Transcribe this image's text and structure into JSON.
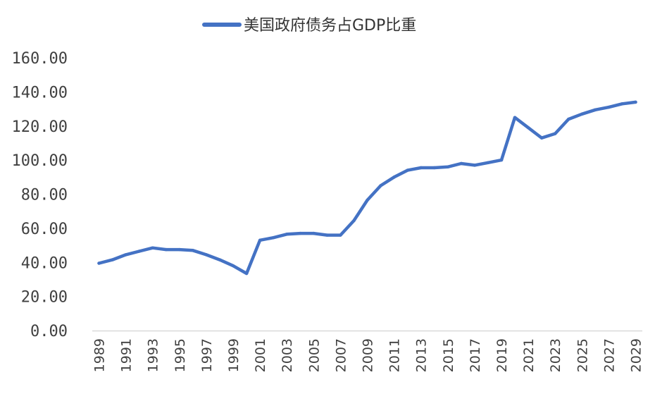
{
  "chart_data": {
    "type": "line",
    "title": "",
    "xlabel": "",
    "ylabel": "",
    "ylim": [
      0,
      160
    ],
    "yticks": [
      "0.00",
      "20.00",
      "40.00",
      "60.00",
      "80.00",
      "100.00",
      "120.00",
      "140.00",
      "160.00"
    ],
    "xtick_labels": [
      "1989",
      "1991",
      "1993",
      "1995",
      "1997",
      "1999",
      "2001",
      "2003",
      "2005",
      "2007",
      "2009",
      "2011",
      "2013",
      "2015",
      "2017",
      "2019",
      "2021",
      "2023",
      "2025",
      "2027",
      "2029"
    ],
    "legend_position": "top",
    "grid": false,
    "x": [
      1989,
      1990,
      1991,
      1992,
      1993,
      1994,
      1995,
      1996,
      1997,
      1998,
      1999,
      2000,
      2001,
      2002,
      2003,
      2004,
      2005,
      2006,
      2007,
      2008,
      2009,
      2010,
      2011,
      2012,
      2013,
      2014,
      2015,
      2016,
      2017,
      2018,
      2019,
      2020,
      2021,
      2022,
      2023,
      2024,
      2025,
      2026,
      2027,
      2028,
      2029
    ],
    "series": [
      {
        "name": "美国政府债务占GDP比重",
        "color": "#4472C4",
        "values": [
          39.5,
          41.5,
          44.5,
          46.5,
          48.5,
          47.5,
          47.5,
          47.0,
          44.5,
          41.5,
          38.0,
          33.5,
          53.0,
          54.5,
          56.5,
          57.0,
          57.0,
          56.0,
          56.0,
          64.5,
          76.5,
          85.0,
          90.0,
          94.0,
          95.5,
          95.5,
          96.0,
          98.0,
          97.0,
          98.5,
          100.0,
          125.0,
          119.0,
          113.0,
          115.5,
          124.0,
          127.0,
          129.5,
          131.0,
          133.0,
          134.0
        ]
      }
    ]
  }
}
